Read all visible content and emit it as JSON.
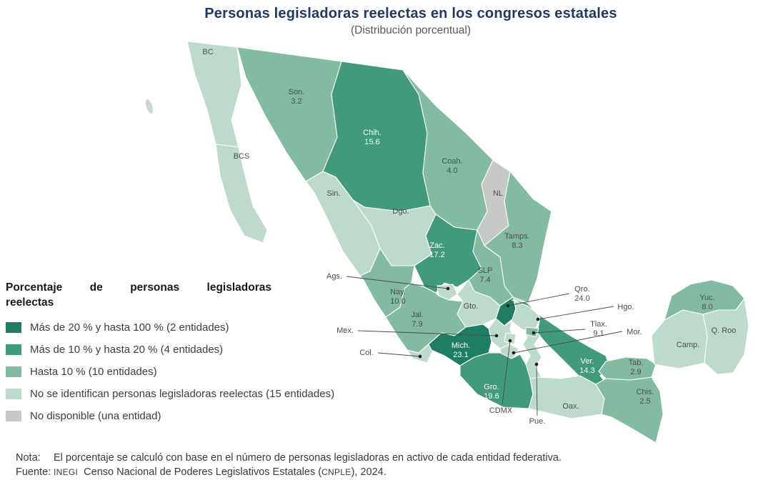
{
  "header": {
    "title": "Personas legisladoras reelectas en los congresos estatales",
    "subtitle": "(Distribución porcentual)"
  },
  "legend": {
    "title_line1": "Porcentaje de personas legisladoras",
    "title_line2": "reelectas",
    "items": [
      {
        "category": "cat1",
        "color": "#1e7d62",
        "label": "Más de 20 % y hasta 100 % (2 entidades)"
      },
      {
        "category": "cat2",
        "color": "#429a7d",
        "label": "Más de 10 % y hasta 20 % (4 entidades)"
      },
      {
        "category": "cat3",
        "color": "#82bba2",
        "label": "Hasta 10 % (10 entidades)"
      },
      {
        "category": "cat4",
        "color": "#bedacc",
        "label": "No se identifican personas legisladoras reelectas (15 entidades)"
      },
      {
        "category": "cat5",
        "color": "#c7c9c7",
        "label": "No disponible (una entidad)"
      }
    ]
  },
  "map": {
    "states": [
      {
        "id": "bc",
        "label": "BC",
        "value": null,
        "category": "cat4"
      },
      {
        "id": "bcs",
        "label": "BCS",
        "value": null,
        "category": "cat4"
      },
      {
        "id": "son",
        "label": "Son.",
        "value": "3.2",
        "category": "cat3"
      },
      {
        "id": "chih",
        "label": "Chih.",
        "value": "15.6",
        "category": "cat2"
      },
      {
        "id": "coah",
        "label": "Coah.",
        "value": "4.0",
        "category": "cat3"
      },
      {
        "id": "nl",
        "label": "NL",
        "value": null,
        "category": "cat5"
      },
      {
        "id": "tamps",
        "label": "Tamps.",
        "value": "8.3",
        "category": "cat3"
      },
      {
        "id": "sin",
        "label": "Sin.",
        "value": null,
        "category": "cat4"
      },
      {
        "id": "dgo",
        "label": "Dgo.",
        "value": null,
        "category": "cat4"
      },
      {
        "id": "zac",
        "label": "Zac.",
        "value": "17.2",
        "category": "cat2"
      },
      {
        "id": "ags",
        "label": "Ags.",
        "value": null,
        "category": "cat4"
      },
      {
        "id": "slp",
        "label": "SLP",
        "value": "7.4",
        "category": "cat3"
      },
      {
        "id": "nay",
        "label": "Nay.",
        "value": "10.0",
        "category": "cat3"
      },
      {
        "id": "jal",
        "label": "Jal.",
        "value": "7.9",
        "category": "cat3"
      },
      {
        "id": "gto",
        "label": "Gto.",
        "value": null,
        "category": "cat4"
      },
      {
        "id": "qro",
        "label": "Qro.",
        "value": "24.0",
        "category": "cat1"
      },
      {
        "id": "hgo",
        "label": "Hgo.",
        "value": null,
        "category": "cat4"
      },
      {
        "id": "ver",
        "label": "Ver.",
        "value": "14.3",
        "category": "cat2"
      },
      {
        "id": "pue",
        "label": "Pue.",
        "value": null,
        "category": "cat4"
      },
      {
        "id": "mex",
        "label": "Mex.",
        "value": null,
        "category": "cat4"
      },
      {
        "id": "cdmx",
        "label": "CDMX",
        "value": null,
        "category": "cat4"
      },
      {
        "id": "tlax",
        "label": "Tlax.",
        "value": "9.1",
        "category": "cat3"
      },
      {
        "id": "mor",
        "label": "Mor.",
        "value": null,
        "category": "cat4"
      },
      {
        "id": "col",
        "label": "Col.",
        "value": null,
        "category": "cat4"
      },
      {
        "id": "mich",
        "label": "Mich.",
        "value": "23.1",
        "category": "cat1"
      },
      {
        "id": "gro",
        "label": "Gro.",
        "value": "19.6",
        "category": "cat2"
      },
      {
        "id": "oax",
        "label": "Oax.",
        "value": null,
        "category": "cat4"
      },
      {
        "id": "chis",
        "label": "Chis.",
        "value": "2.5",
        "category": "cat3"
      },
      {
        "id": "tab",
        "label": "Tab.",
        "value": "2.9",
        "category": "cat3"
      },
      {
        "id": "camp",
        "label": "Camp.",
        "value": null,
        "category": "cat4"
      },
      {
        "id": "yuc",
        "label": "Yuc.",
        "value": "8.0",
        "category": "cat3"
      },
      {
        "id": "qroo",
        "label": "Q. Roo",
        "value": null,
        "category": "cat4"
      }
    ]
  },
  "notes": {
    "nota_label": "Nota:",
    "nota_text": "El porcentaje se calculó con base en el número de personas legisladoras en activo de cada entidad federativa.",
    "fuente_label": "Fuente:",
    "fuente_inegi": "INEGI",
    "fuente_body": "Censo Nacional de Poderes Legislativos Estatales (",
    "fuente_acronym": "CNPLE",
    "fuente_suffix": "), 2024."
  },
  "chart_data": {
    "type": "heatmap",
    "subtype": "choropleth map of Mexican states",
    "title": "Personas legisladoras reelectas en los congresos estatales",
    "subtitle": "(Distribución porcentual)",
    "unit": "%",
    "bins": [
      "Más de 20 % y hasta 100 % (2 entidades)",
      "Más de 10 % y hasta 20 % (4 entidades)",
      "Hasta 10 % (10 entidades)",
      "No se identifican personas legisladoras reelectas (15 entidades)",
      "No disponible (una entidad)"
    ],
    "values": {
      "Qro.": 24.0,
      "Mich.": 23.1,
      "Gro.": 19.6,
      "Zac.": 17.2,
      "Chih.": 15.6,
      "Ver.": 14.3,
      "Nay.": 10.0,
      "Tlax.": 9.1,
      "Tamps.": 8.3,
      "Yuc.": 8.0,
      "Jal.": 7.9,
      "SLP": 7.4,
      "Coah.": 4.0,
      "Son.": 3.2,
      "Tab.": 2.9,
      "Chis.": 2.5
    }
  }
}
